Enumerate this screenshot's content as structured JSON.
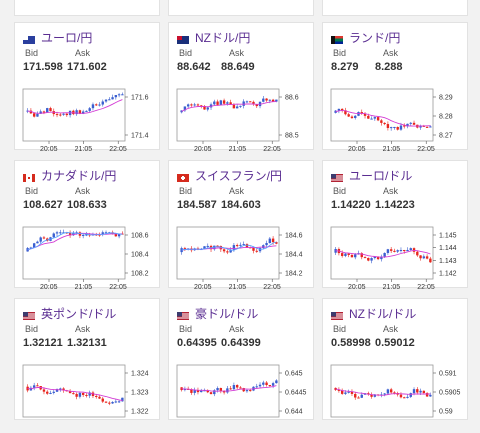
{
  "labels": {
    "bid": "Bid",
    "ask": "Ask"
  },
  "colors": {
    "up": "#3a5fd0",
    "down": "#e8251d",
    "ma": "#d43bd4",
    "ma2": "#5aa0ff"
  },
  "cards": [
    {
      "pair": "ユーロ/円",
      "flag": "eu",
      "bid": "171.598",
      "ask": "171.602",
      "xticks": [
        "20:05",
        "21:05",
        "22:05"
      ],
      "yticks": [
        "171.6",
        "171.4"
      ]
    },
    {
      "pair": "NZドル/円",
      "flag": "nz",
      "bid": "88.642",
      "ask": "88.649",
      "xticks": [
        "20:05",
        "21:05",
        "22:05"
      ],
      "yticks": [
        "88.6",
        "88.5"
      ]
    },
    {
      "pair": "ランド/円",
      "flag": "za",
      "bid": "8.279",
      "ask": "8.288",
      "xticks": [
        "20:05",
        "21:05",
        "22:05"
      ],
      "yticks": [
        "8.29",
        "8.28",
        "8.27"
      ]
    },
    {
      "pair": "カナダドル/円",
      "flag": "ca",
      "bid": "108.627",
      "ask": "108.633",
      "xticks": [
        "20:05",
        "21:05",
        "22:05"
      ],
      "yticks": [
        "108.6",
        "108.4",
        "108.2"
      ]
    },
    {
      "pair": "スイスフラン/円",
      "flag": "ch",
      "bid": "184.587",
      "ask": "184.603",
      "xticks": [
        "20:05",
        "21:05",
        "22:05"
      ],
      "yticks": [
        "184.6",
        "184.4",
        "184.2"
      ]
    },
    {
      "pair": "ユーロ/ドル",
      "flag": "us",
      "bid": "1.14220",
      "ask": "1.14223",
      "xticks": [
        "20:05",
        "21:05",
        "22:05"
      ],
      "yticks": [
        "1.145",
        "1.144",
        "1.143",
        "1.142"
      ]
    },
    {
      "pair": "英ポンド/ドル",
      "flag": "us",
      "bid": "1.32121",
      "ask": "1.32131",
      "xticks": [],
      "yticks": [
        "1.324",
        "1.323",
        "1.322"
      ]
    },
    {
      "pair": "豪ドル/ドル",
      "flag": "us",
      "bid": "0.64395",
      "ask": "0.64399",
      "xticks": [],
      "yticks": [
        "0.645",
        "0.6445",
        "0.644"
      ]
    },
    {
      "pair": "NZドル/ドル",
      "flag": "us",
      "bid": "0.58998",
      "ask": "0.59012",
      "xticks": [],
      "yticks": [
        "0.591",
        "0.5905",
        "0.59"
      ]
    }
  ]
}
